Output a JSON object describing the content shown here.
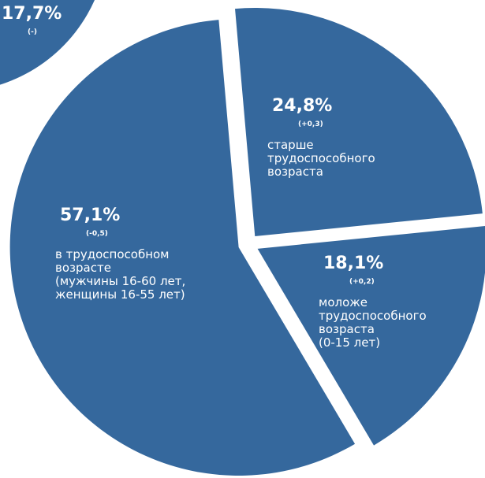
{
  "chart_data": [
    {
      "type": "pie",
      "categories": [
        [
          "старше",
          "трудоспособного",
          "возраста"
        ],
        [
          "моложе",
          "трудоспособного",
          "возраста",
          "(0-15 лет)"
        ],
        [
          "в трудоспособном",
          "возрасте",
          "(мужчины 16-60  лет,",
          "женщины 16-55 лет)"
        ]
      ],
      "values": [
        24.8,
        18.1,
        57.1
      ],
      "value_labels": [
        "24,8%",
        "18,1%",
        "57,1%"
      ],
      "changes": [
        "(+0,3)",
        "(+0,2)",
        "(-0,5)"
      ],
      "color": "#35689d"
    },
    {
      "type": "pie",
      "values": [
        17.7
      ],
      "value_labels": [
        "17,7%"
      ],
      "changes": [
        "(-)"
      ],
      "color": "#35689d"
    }
  ]
}
